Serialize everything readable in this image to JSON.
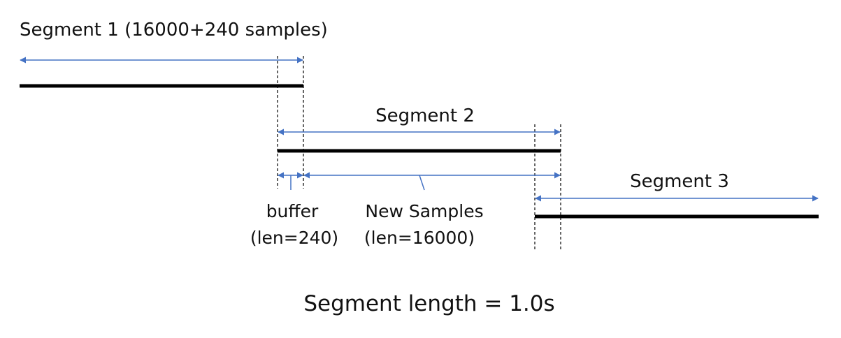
{
  "segments": [
    {
      "label": "Segment 1 (16000+240 samples)"
    },
    {
      "label": "Segment 2"
    },
    {
      "label": "Segment 3"
    }
  ],
  "buffer": {
    "label": "buffer",
    "len_label": "(len=240)"
  },
  "new_samples": {
    "label": "New Samples",
    "len_label": "(len=16000)"
  },
  "footer": {
    "text": "Segment length = 1.0s"
  },
  "colors": {
    "arrow": "#4472c4",
    "bar": "#000000",
    "guide": "#000000"
  }
}
